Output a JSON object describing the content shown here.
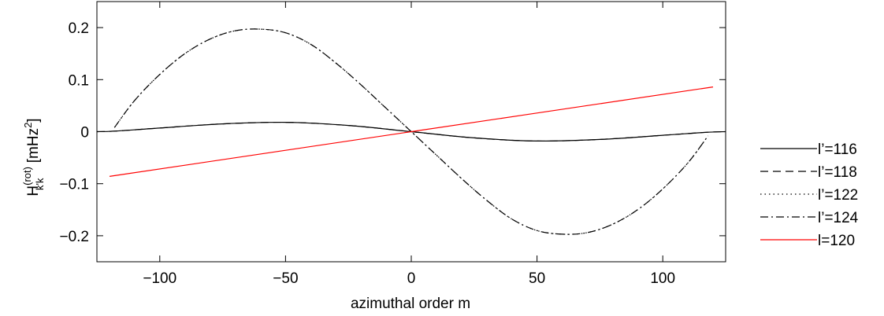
{
  "chart_data": {
    "type": "line",
    "xlabel": "azimuthal order m",
    "ylabel_main": "H",
    "ylabel_sup": "(rot)",
    "ylabel_sub": "k'k",
    "ylabel_unit_open": " [mHz",
    "ylabel_unit_exp": "2",
    "ylabel_unit_close": "]",
    "xlim": [
      -125,
      125
    ],
    "ylim": [
      -0.25,
      0.25
    ],
    "xticks": [
      -100,
      -50,
      0,
      50,
      100
    ],
    "xtick_labels": [
      "−100",
      "−50",
      "0",
      "50",
      "100"
    ],
    "yticks": [
      -0.2,
      -0.1,
      0,
      0.1,
      0.2
    ],
    "ytick_labels": [
      "−0.2",
      "−0.1",
      "0",
      "0.1",
      "0.2"
    ],
    "grid": false,
    "legend_position": "right",
    "series": [
      {
        "name": "l’=116",
        "color": "#000000",
        "dash": "solid",
        "x": [
          -125,
          -118,
          -100,
          -75,
          -50,
          -25,
          0,
          25,
          50,
          75,
          100,
          118,
          125
        ],
        "y": [
          0,
          0.001,
          0.007,
          0.015,
          0.018,
          0.012,
          0,
          -0.012,
          -0.018,
          -0.015,
          -0.007,
          -0.001,
          0
        ]
      },
      {
        "name": "l’=118",
        "color": "#000000",
        "dash": "dashed",
        "x": [
          -125,
          -118,
          -100,
          -75,
          -50,
          -25,
          0,
          25,
          50,
          75,
          100,
          118,
          125
        ],
        "y": [
          0,
          0.001,
          0.007,
          0.015,
          0.018,
          0.012,
          0,
          -0.012,
          -0.018,
          -0.015,
          -0.007,
          -0.001,
          0
        ]
      },
      {
        "name": "l’=122",
        "color": "#000000",
        "dash": "dotted",
        "x": [
          -118,
          -110,
          -100,
          -90,
          -80,
          -70,
          -60,
          -50,
          -40,
          -30,
          -20,
          -10,
          0,
          10,
          20,
          30,
          40,
          50,
          60,
          70,
          80,
          90,
          100,
          110,
          118
        ],
        "y": [
          0.008,
          0.06,
          0.11,
          0.15,
          0.178,
          0.194,
          0.197,
          0.19,
          0.168,
          0.132,
          0.09,
          0.045,
          0,
          -0.045,
          -0.09,
          -0.132,
          -0.168,
          -0.19,
          -0.197,
          -0.194,
          -0.178,
          -0.15,
          -0.11,
          -0.06,
          -0.008
        ]
      },
      {
        "name": "l’=124",
        "color": "#000000",
        "dash": "dashdot",
        "x": [
          -118,
          -110,
          -100,
          -90,
          -80,
          -70,
          -60,
          -50,
          -40,
          -30,
          -20,
          -10,
          0,
          10,
          20,
          30,
          40,
          50,
          60,
          70,
          80,
          90,
          100,
          110,
          118
        ],
        "y": [
          0.008,
          0.06,
          0.11,
          0.15,
          0.178,
          0.194,
          0.197,
          0.19,
          0.168,
          0.132,
          0.09,
          0.045,
          0,
          -0.045,
          -0.09,
          -0.132,
          -0.168,
          -0.19,
          -0.197,
          -0.194,
          -0.178,
          -0.15,
          -0.11,
          -0.06,
          -0.008
        ]
      },
      {
        "name": "l=120",
        "color": "#ff0000",
        "dash": "solid",
        "x": [
          -120,
          0,
          120
        ],
        "y": [
          -0.086,
          0,
          0.086
        ]
      }
    ]
  }
}
